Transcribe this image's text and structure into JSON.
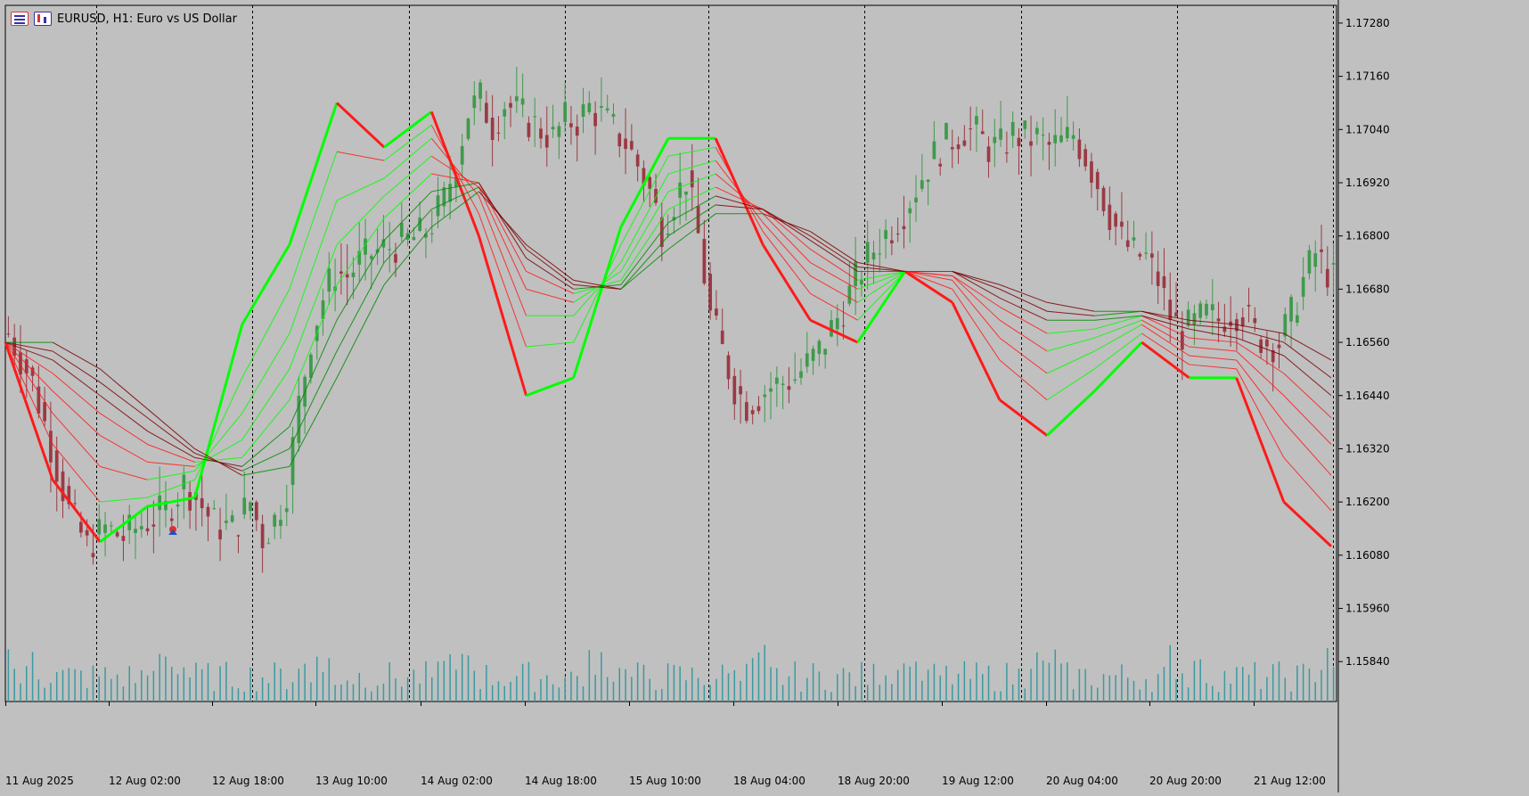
{
  "window": {
    "symbol_title": "EURUSD, H1:  Euro vs US Dollar",
    "icons": [
      "chart-menu-icon",
      "symbol-properties-icon"
    ]
  },
  "colors": {
    "background": "#c0c0c0",
    "bull_candle": "#3f9a4c",
    "bear_candle": "#9b3a44",
    "ribbon_up": "#00ff00",
    "ribbon_up_dark": "#008a00",
    "ribbon_down": "#ff1a1a",
    "ribbon_down_dark": "#7a0000",
    "volume": "#3a9aa0",
    "grid": "#000000"
  },
  "chart_data": {
    "type": "candlestick",
    "y_axis_ticks": [
      "1.17280",
      "1.17160",
      "1.17040",
      "1.16920",
      "1.16800",
      "1.16680",
      "1.16560",
      "1.16440",
      "1.16320",
      "1.16200",
      "1.16080",
      "1.15960",
      "1.15840"
    ],
    "ylim": [
      1.1575,
      1.1732
    ],
    "y_axis_position": "right",
    "x_axis_labels": [
      "11 Aug 2025",
      "12 Aug 02:00",
      "12 Aug 18:00",
      "13 Aug 10:00",
      "14 Aug 02:00",
      "14 Aug 18:00",
      "15 Aug 10:00",
      "18 Aug 04:00",
      "18 Aug 20:00",
      "19 Aug 12:00",
      "20 Aug 04:00",
      "20 Aug 20:00",
      "21 Aug 12:00"
    ],
    "period_separators": [
      "12 Aug",
      "13 Aug",
      "14 Aug",
      "15 Aug",
      "18 Aug",
      "19 Aug",
      "20 Aug",
      "21 Aug"
    ],
    "bar_count": 220,
    "close_path": [
      [
        0,
        1.1658
      ],
      [
        4,
        1.1647
      ],
      [
        7,
        1.1633
      ],
      [
        10,
        1.1618
      ],
      [
        13,
        1.161
      ],
      [
        16,
        1.1614
      ],
      [
        19,
        1.1612
      ],
      [
        22,
        1.1615
      ],
      [
        26,
        1.1618
      ],
      [
        29,
        1.1624
      ],
      [
        31,
        1.1621
      ],
      [
        34,
        1.1615
      ],
      [
        37,
        1.1614
      ],
      [
        40,
        1.162
      ],
      [
        42,
        1.1612
      ],
      [
        44,
        1.1616
      ],
      [
        46,
        1.1623
      ],
      [
        48,
        1.1642
      ],
      [
        50,
        1.1657
      ],
      [
        52,
        1.1666
      ],
      [
        54,
        1.1672
      ],
      [
        56,
        1.1671
      ],
      [
        58,
        1.1674
      ],
      [
        60,
        1.1676
      ],
      [
        62,
        1.1677
      ],
      [
        64,
        1.1678
      ],
      [
        66,
        1.1679
      ],
      [
        68,
        1.168
      ],
      [
        70,
        1.1683
      ],
      [
        72,
        1.1688
      ],
      [
        74,
        1.1697
      ],
      [
        76,
        1.1708
      ],
      [
        78,
        1.1711
      ],
      [
        80,
        1.1705
      ],
      [
        82,
        1.171
      ],
      [
        84,
        1.1708
      ],
      [
        86,
        1.1706
      ],
      [
        88,
        1.1704
      ],
      [
        90,
        1.1702
      ],
      [
        92,
        1.1706
      ],
      [
        94,
        1.1706
      ],
      [
        96,
        1.1709
      ],
      [
        98,
        1.1707
      ],
      [
        100,
        1.1704
      ],
      [
        102,
        1.1701
      ],
      [
        104,
        1.1696
      ],
      [
        106,
        1.169
      ],
      [
        108,
        1.1682
      ],
      [
        110,
        1.1688
      ],
      [
        112,
        1.1693
      ],
      [
        114,
        1.168
      ],
      [
        116,
        1.1662
      ],
      [
        118,
        1.1654
      ],
      [
        120,
        1.1646
      ],
      [
        122,
        1.1642
      ],
      [
        124,
        1.1644
      ],
      [
        126,
        1.1646
      ],
      [
        128,
        1.1647
      ],
      [
        130,
        1.1648
      ],
      [
        132,
        1.1651
      ],
      [
        134,
        1.1654
      ],
      [
        136,
        1.1659
      ],
      [
        138,
        1.1664
      ],
      [
        140,
        1.167
      ],
      [
        142,
        1.1675
      ],
      [
        144,
        1.1679
      ],
      [
        146,
        1.1682
      ],
      [
        148,
        1.1686
      ],
      [
        150,
        1.1691
      ],
      [
        152,
        1.1696
      ],
      [
        154,
        1.17
      ],
      [
        156,
        1.1702
      ],
      [
        158,
        1.1704
      ],
      [
        160,
        1.1703
      ],
      [
        162,
        1.17
      ],
      [
        164,
        1.17
      ],
      [
        166,
        1.1703
      ],
      [
        168,
        1.1702
      ],
      [
        170,
        1.1702
      ],
      [
        172,
        1.17
      ],
      [
        174,
        1.1701
      ],
      [
        176,
        1.1703
      ],
      [
        178,
        1.1698
      ],
      [
        180,
        1.1692
      ],
      [
        182,
        1.1685
      ],
      [
        184,
        1.1679
      ],
      [
        186,
        1.1676
      ],
      [
        188,
        1.1675
      ],
      [
        190,
        1.167
      ],
      [
        192,
        1.1662
      ],
      [
        194,
        1.1658
      ],
      [
        196,
        1.166
      ],
      [
        198,
        1.1662
      ],
      [
        200,
        1.1661
      ],
      [
        202,
        1.1663
      ],
      [
        204,
        1.1663
      ],
      [
        206,
        1.1658
      ],
      [
        208,
        1.1656
      ],
      [
        210,
        1.1656
      ],
      [
        212,
        1.1662
      ],
      [
        214,
        1.167
      ],
      [
        216,
        1.1676
      ],
      [
        218,
        1.1672
      ],
      [
        220,
        1.1668
      ]
    ],
    "ribbon_series": [
      {
        "values": [
          1.1656,
          1.1625,
          1.1611,
          1.1619,
          1.1621,
          1.166,
          1.1678,
          1.171,
          1.17,
          1.1708,
          1.168,
          1.1644,
          1.1648,
          1.1682,
          1.1702,
          1.1702,
          1.1678,
          1.1661,
          1.1656,
          1.1672,
          1.1665,
          1.1643,
          1.1635,
          1.1645,
          1.1656,
          1.1648,
          1.1648,
          1.162,
          1.161
        ]
      },
      {
        "values": [
          1.1656,
          1.1633,
          1.162,
          1.1621,
          1.1625,
          1.1648,
          1.1668,
          1.1699,
          1.1697,
          1.1705,
          1.1685,
          1.1655,
          1.1656,
          1.1678,
          1.1698,
          1.17,
          1.1681,
          1.1667,
          1.1661,
          1.1672,
          1.1668,
          1.1652,
          1.1643,
          1.165,
          1.1658,
          1.1651,
          1.165,
          1.163,
          1.1618
        ]
      },
      {
        "values": [
          1.1656,
          1.164,
          1.1628,
          1.1625,
          1.1627,
          1.164,
          1.1658,
          1.1688,
          1.1693,
          1.1702,
          1.1689,
          1.1662,
          1.1662,
          1.1674,
          1.1694,
          1.1697,
          1.1683,
          1.1671,
          1.1665,
          1.1672,
          1.167,
          1.1657,
          1.1649,
          1.1654,
          1.166,
          1.1653,
          1.1652,
          1.1638,
          1.1626
        ]
      },
      {
        "values": [
          1.1656,
          1.1645,
          1.1635,
          1.1629,
          1.1628,
          1.1634,
          1.165,
          1.1678,
          1.1689,
          1.1698,
          1.1691,
          1.1668,
          1.1665,
          1.1672,
          1.169,
          1.1694,
          1.1685,
          1.1674,
          1.1668,
          1.1672,
          1.1671,
          1.1661,
          1.1654,
          1.1657,
          1.1661,
          1.1655,
          1.1654,
          1.1644,
          1.1633
        ]
      },
      {
        "values": [
          1.1656,
          1.1649,
          1.164,
          1.1633,
          1.1629,
          1.163,
          1.1643,
          1.1669,
          1.1684,
          1.1694,
          1.1692,
          1.1672,
          1.1667,
          1.167,
          1.1686,
          1.1691,
          1.1686,
          1.1677,
          1.167,
          1.1672,
          1.1671,
          1.1664,
          1.1658,
          1.1659,
          1.1662,
          1.1657,
          1.1656,
          1.1649,
          1.1639
        ]
      },
      {
        "values": [
          1.1656,
          1.1652,
          1.1644,
          1.1636,
          1.163,
          1.1628,
          1.1637,
          1.1661,
          1.1679,
          1.169,
          1.1692,
          1.1675,
          1.1668,
          1.1669,
          1.1683,
          1.1689,
          1.1686,
          1.1679,
          1.1672,
          1.1672,
          1.1672,
          1.1666,
          1.1661,
          1.1661,
          1.1662,
          1.1659,
          1.1657,
          1.1653,
          1.1644
        ]
      },
      {
        "values": [
          1.1656,
          1.1654,
          1.1647,
          1.1639,
          1.1631,
          1.1627,
          1.1632,
          1.1654,
          1.1674,
          1.1686,
          1.1691,
          1.1677,
          1.1669,
          1.1668,
          1.168,
          1.1687,
          1.1686,
          1.168,
          1.1673,
          1.1672,
          1.1672,
          1.1668,
          1.1663,
          1.1662,
          1.1663,
          1.166,
          1.1659,
          1.1656,
          1.1648
        ]
      },
      {
        "values": [
          1.1656,
          1.1656,
          1.165,
          1.1641,
          1.1632,
          1.1626,
          1.1628,
          1.1648,
          1.1669,
          1.1682,
          1.169,
          1.1678,
          1.167,
          1.1668,
          1.1677,
          1.1685,
          1.1685,
          1.1681,
          1.1674,
          1.1672,
          1.1672,
          1.1669,
          1.1665,
          1.1663,
          1.1663,
          1.1661,
          1.166,
          1.1658,
          1.1652
        ]
      }
    ],
    "volume_max": 80,
    "volume_note": "tick volume histogram along the bottom"
  }
}
